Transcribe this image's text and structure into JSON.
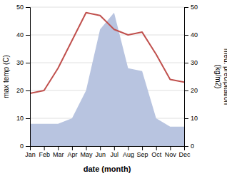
{
  "chart_data": {
    "type": "line",
    "x_label": "date (month)",
    "y_label": "max temp (C)",
    "y2_label": "med. precipitation\n(kg/m2)",
    "categories": [
      "Jan",
      "Feb",
      "Mar",
      "Apr",
      "May",
      "Jun",
      "Jul",
      "Aug",
      "Sep",
      "Oct",
      "Nov",
      "Dec"
    ],
    "series": [
      {
        "type": "area",
        "color": "#b8c4e0",
        "axis": "y2",
        "values": [
          8,
          8,
          8,
          10,
          20,
          42,
          48,
          28,
          27,
          10,
          7,
          7
        ]
      },
      {
        "type": "line",
        "color": "#c0504d",
        "values": [
          19,
          20,
          28,
          38,
          48,
          47,
          42,
          40,
          41,
          33,
          24,
          23
        ]
      }
    ],
    "ylim": [
      0,
      50
    ],
    "yticks": [
      0,
      10,
      20,
      30,
      40,
      50
    ],
    "y2lim": [
      0,
      50
    ],
    "y2ticks": [
      0,
      10,
      20,
      30,
      40,
      50
    ],
    "grid": true
  }
}
